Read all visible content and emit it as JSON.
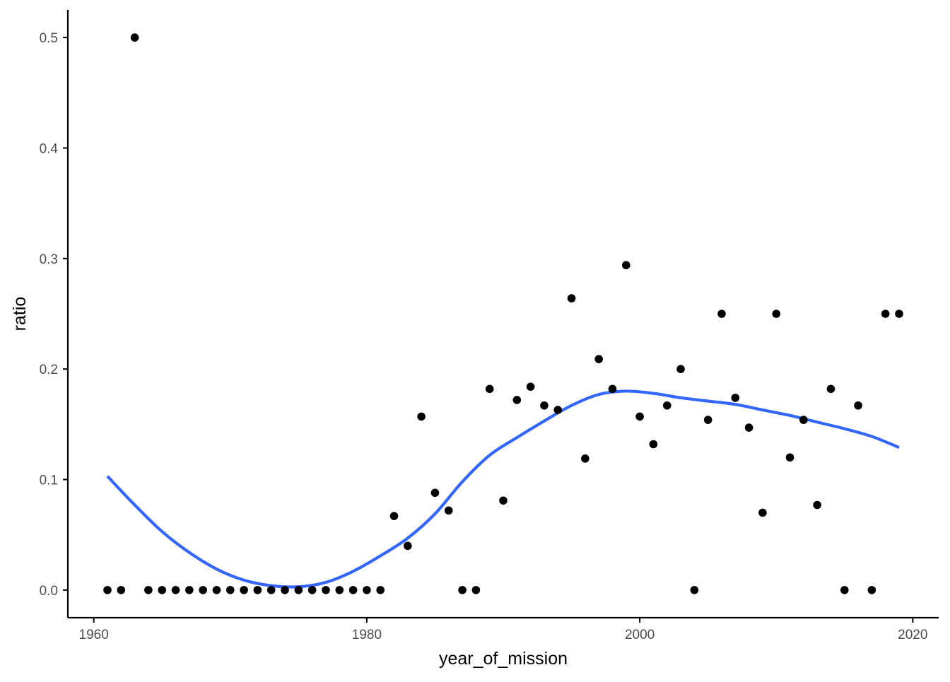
{
  "chart_data": {
    "type": "scatter",
    "title": "",
    "xlabel": "year_of_mission",
    "ylabel": "ratio",
    "xlim": [
      1958.1,
      2021.9
    ],
    "ylim": [
      -0.025,
      0.525
    ],
    "x_ticks": [
      1960,
      1980,
      2000,
      2020
    ],
    "x_tick_labels": [
      "1960",
      "1980",
      "2000",
      "2020"
    ],
    "y_ticks": [
      0,
      0.1,
      0.2,
      0.3,
      0.4,
      0.5
    ],
    "y_tick_labels": [
      "0.0",
      "0.1",
      "0.2",
      "0.3",
      "0.4",
      "0.5"
    ],
    "grid": false,
    "legend": "none",
    "colors": {
      "points": "#000000",
      "smooth_line": "#3366FF",
      "axis": "#000000",
      "tick_text": "#4d4d4d",
      "background": "#ffffff"
    },
    "series": [
      {
        "type": "scatter",
        "x": [
          1961,
          1962,
          1963,
          1964,
          1965,
          1966,
          1967,
          1968,
          1969,
          1970,
          1971,
          1972,
          1973,
          1974,
          1975,
          1976,
          1977,
          1978,
          1979,
          1980,
          1981,
          1982,
          1983,
          1984,
          1985,
          1986,
          1987,
          1988,
          1989,
          1990,
          1991,
          1992,
          1993,
          1994,
          1995,
          1996,
          1997,
          1998,
          1999,
          2000,
          2001,
          2002,
          2003,
          2004,
          2005,
          2006,
          2007,
          2008,
          2009,
          2010,
          2011,
          2012,
          2013,
          2014,
          2015,
          2016,
          2017,
          2018,
          2019
        ],
        "y": [
          0,
          0,
          0.5,
          0,
          0,
          0,
          0,
          0,
          0,
          0,
          0,
          0,
          0,
          0,
          0,
          0,
          0,
          0,
          0,
          0,
          0,
          0.067,
          0.04,
          0.157,
          0.088,
          0.072,
          0,
          0,
          0.182,
          0.081,
          0.172,
          0.184,
          0.167,
          0.163,
          0.264,
          0.119,
          0.209,
          0.182,
          0.294,
          0.157,
          0.132,
          0.167,
          0.2,
          0,
          0.154,
          0.25,
          0.174,
          0.147,
          0.07,
          0.25,
          0.12,
          0.154,
          0.077,
          0.182,
          0,
          0.167,
          0,
          0.25,
          0.25
        ]
      },
      {
        "type": "smooth",
        "x": [
          1961,
          1963,
          1965,
          1967,
          1969,
          1971,
          1973,
          1975,
          1977,
          1979,
          1981,
          1983,
          1985,
          1987,
          1989,
          1991,
          1993,
          1995,
          1997,
          1999,
          2001,
          2003,
          2005,
          2007,
          2009,
          2011,
          2013,
          2015,
          2017,
          2019
        ],
        "y": [
          0.103,
          0.077,
          0.053,
          0.034,
          0.019,
          0.009,
          0.004,
          0.003,
          0.007,
          0.017,
          0.031,
          0.047,
          0.069,
          0.098,
          0.122,
          0.138,
          0.153,
          0.167,
          0.177,
          0.18,
          0.178,
          0.174,
          0.171,
          0.168,
          0.163,
          0.158,
          0.152,
          0.146,
          0.139,
          0.129
        ]
      }
    ]
  }
}
